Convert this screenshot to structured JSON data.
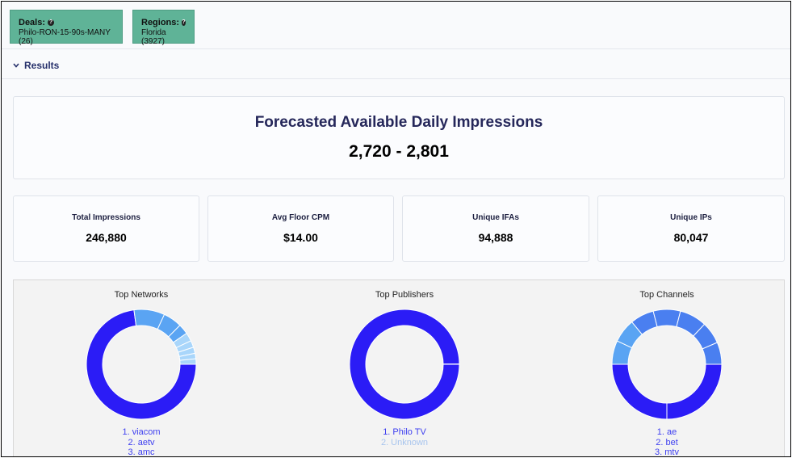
{
  "filters": {
    "deals": {
      "label": "Deals:",
      "help_icon": "?",
      "value": "Philo-RON-15-90s-MANY (26)"
    },
    "regions": {
      "label": "Regions:",
      "help_icon": "?",
      "value": "Florida (3927)"
    }
  },
  "results": {
    "label": "Results",
    "icon": "chevron-down-icon"
  },
  "forecast": {
    "title": "Forecasted Available Daily Impressions",
    "range": "2,720 - 2,801"
  },
  "stats": [
    {
      "label": "Total Impressions",
      "value": "246,880"
    },
    {
      "label": "Avg Floor CPM",
      "value": "$14.00"
    },
    {
      "label": "Unique IFAs",
      "value": "94,888"
    },
    {
      "label": "Unique IPs",
      "value": "80,047"
    }
  ],
  "colors": {
    "primary": "#2b1cf6",
    "secondary": "#4a7ff0",
    "tertiary": "#5aa4f3",
    "light": "#a9d6fb",
    "chip": "#5fb397"
  },
  "chart_data": [
    {
      "type": "pie",
      "title": "Top Networks",
      "categories": [
        "viacom",
        "aetv",
        "amc",
        "",
        "",
        "",
        "",
        "",
        ""
      ],
      "values": [
        72.5,
        9,
        5.5,
        3,
        2.5,
        2,
        1.8,
        1.6,
        1.6
      ],
      "visible_legend": [
        "1. viacom",
        "2. aetv",
        "3. amc"
      ]
    },
    {
      "type": "pie",
      "title": "Top Publishers",
      "categories": [
        "Philo TV",
        "Unknown"
      ],
      "values": [
        99.9,
        0.1
      ],
      "visible_legend": [
        "1. Philo TV",
        "2. Unknown"
      ]
    },
    {
      "type": "pie",
      "title": "Top Channels",
      "categories": [
        "ae",
        "bet",
        "mtv",
        "",
        "",
        "",
        "",
        "",
        ""
      ],
      "values": [
        25,
        25,
        7,
        7,
        7,
        8,
        8,
        6.5,
        6.5
      ],
      "visible_legend": [
        "1. ae",
        "2. bet",
        "3. mtv"
      ]
    }
  ]
}
